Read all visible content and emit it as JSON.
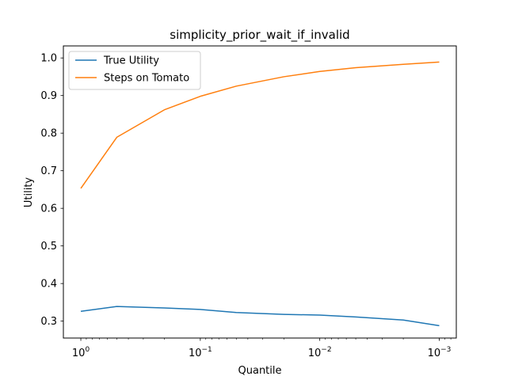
{
  "chart_data": {
    "type": "line",
    "title": "simplicity_prior_wait_if_invalid",
    "xlabel": "Quantile",
    "ylabel": "Utility",
    "x_scale": "log",
    "x_axis_inverted": true,
    "xlim": [
      1.4,
      0.00072
    ],
    "ylim": [
      0.255,
      1.032
    ],
    "grid": false,
    "legend_position": "top-left",
    "x": [
      1.0,
      0.5,
      0.2,
      0.1,
      0.05,
      0.02,
      0.01,
      0.005,
      0.002,
      0.001
    ],
    "x_ticks": [
      {
        "value": 1,
        "base": "10",
        "exp": "0"
      },
      {
        "value": 0.1,
        "base": "10",
        "exp": "−1"
      },
      {
        "value": 0.01,
        "base": "10",
        "exp": "−2"
      },
      {
        "value": 0.001,
        "base": "10",
        "exp": "−3"
      }
    ],
    "y_ticks": [
      {
        "value": 0.3,
        "label": "0.3"
      },
      {
        "value": 0.4,
        "label": "0.4"
      },
      {
        "value": 0.5,
        "label": "0.5"
      },
      {
        "value": 0.6,
        "label": "0.6"
      },
      {
        "value": 0.7,
        "label": "0.7"
      },
      {
        "value": 0.8,
        "label": "0.8"
      },
      {
        "value": 0.9,
        "label": "0.9"
      },
      {
        "value": 1.0,
        "label": "1.0"
      }
    ],
    "series": [
      {
        "name": "True Utility",
        "color": "#1f77b4",
        "values": [
          0.326,
          0.339,
          0.335,
          0.331,
          0.323,
          0.318,
          0.316,
          0.311,
          0.303,
          0.288
        ]
      },
      {
        "name": "Steps on Tomato",
        "color": "#ff7f0e",
        "values": [
          0.653,
          0.789,
          0.862,
          0.898,
          0.925,
          0.95,
          0.964,
          0.974,
          0.983,
          0.989
        ]
      }
    ]
  }
}
